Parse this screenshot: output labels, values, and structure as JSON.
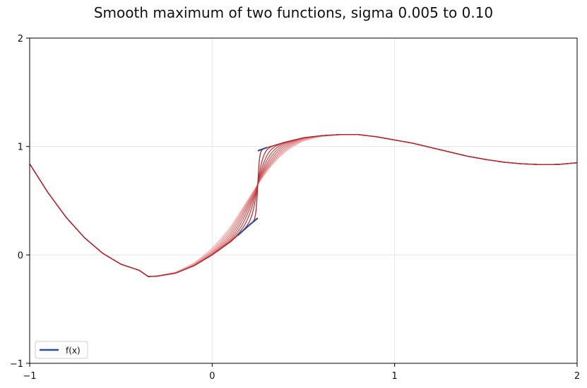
{
  "chart_data": {
    "type": "line",
    "title": "Smooth maximum of two functions, sigma 0.005 to 0.10",
    "xlabel": "",
    "ylabel": "",
    "xlim": [
      -1,
      2
    ],
    "ylim": [
      -1,
      2
    ],
    "x_ticks": [
      "−1",
      "0",
      "1",
      "2"
    ],
    "y_ticks": [
      "−1",
      "0",
      "1",
      "2"
    ],
    "grid": true,
    "legend": {
      "placement": "lower-left",
      "entries": [
        "f(x)"
      ]
    },
    "colors": {
      "fx": "#2b4f96",
      "smooth_dark": "#b3242c",
      "smooth_light": "#f2b8b6"
    },
    "jump_x": 0.25,
    "sigmas": [
      0.005,
      0.0155,
      0.026,
      0.0365,
      0.047,
      0.0575,
      0.068,
      0.0785,
      0.089,
      0.1
    ],
    "series": [
      {
        "name": "f(x)",
        "description": "piecewise function with a jump at x = 0.25",
        "segments": [
          {
            "x": [
              -1,
              -0.9,
              -0.8,
              -0.7,
              -0.6,
              -0.5,
              -0.4,
              -0.35,
              -0.3,
              -0.2,
              -0.1,
              0,
              0.1,
              0.2,
              0.25
            ],
            "y": [
              0.84,
              0.575,
              0.346,
              0.159,
              0.015,
              -0.086,
              -0.142,
              -0.2,
              -0.196,
              -0.168,
              -0.1,
              0,
              0.12,
              0.27,
              0.34
            ]
          },
          {
            "x": [
              0.25,
              0.3,
              0.4,
              0.5,
              0.6,
              0.7,
              0.8,
              0.9,
              1.0,
              1.1,
              1.2,
              1.3,
              1.4,
              1.5,
              1.6,
              1.7,
              1.8,
              1.9,
              2.0
            ],
            "y": [
              0.96,
              0.99,
              1.04,
              1.08,
              1.1,
              1.11,
              1.11,
              1.09,
              1.06,
              1.03,
              0.99,
              0.95,
              0.91,
              0.88,
              0.855,
              0.84,
              0.833,
              0.835,
              0.85
            ]
          }
        ]
      }
    ]
  }
}
